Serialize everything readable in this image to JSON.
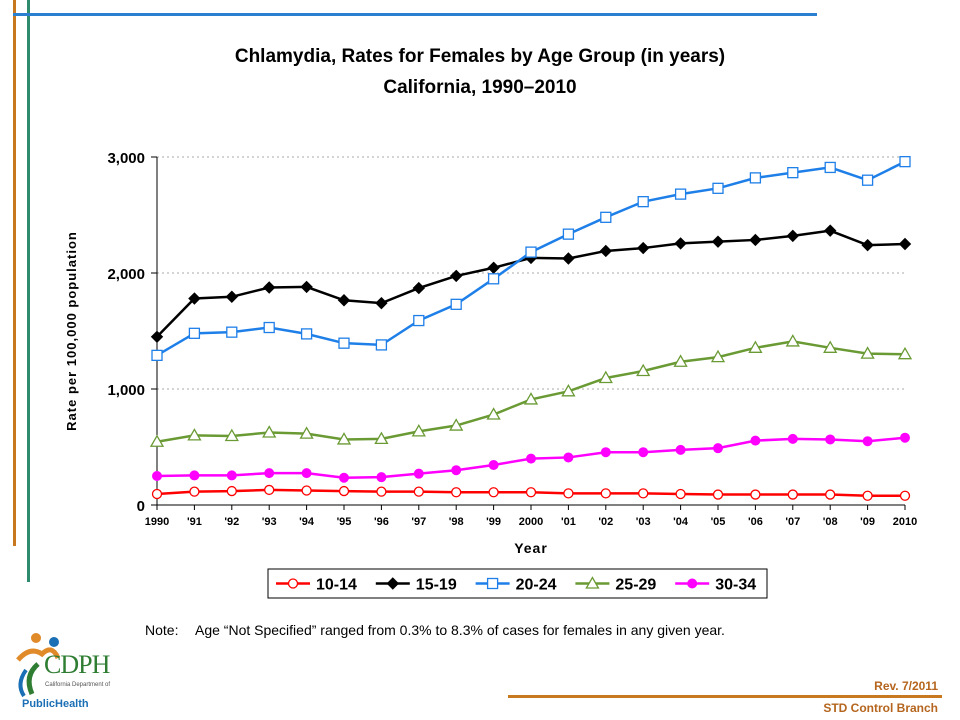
{
  "title_line1": "Chlamydia, Rates for Females by Age Group (in years)",
  "title_line2": "California, 1990–2010",
  "note_label": "Note:",
  "note_text": "Age “Not Specified” ranged from 0.3% to 8.3% of cases for females in any given year.",
  "revision": "Rev. 7/2011",
  "branch": "STD Control Branch",
  "logo": {
    "name": "CDPH",
    "subtitle_line1": "California Department of",
    "subtitle_line2": "PublicHealth"
  },
  "chart_data": {
    "type": "line",
    "title": "Chlamydia, Rates for Females by Age Group (in years)",
    "subtitle": "California, 1990–2010",
    "xlabel": "Year",
    "ylabel": "Rate per 100,000 population",
    "ylim": [
      0,
      3000
    ],
    "yticks": [
      0,
      1000,
      2000,
      3000
    ],
    "ytick_labels": [
      "0",
      "1,000",
      "2,000",
      "3,000"
    ],
    "grid": "horizontal dotted",
    "legend_position": "bottom",
    "categories": [
      "1990",
      "'91",
      "'92",
      "'93",
      "'94",
      "'95",
      "'96",
      "'97",
      "'98",
      "'99",
      "2000",
      "'01",
      "'02",
      "'03",
      "'04",
      "'05",
      "'06",
      "'07",
      "'08",
      "'09",
      "2010"
    ],
    "series": [
      {
        "name": "10-14",
        "color": "#ff0000",
        "marker": "circle-open",
        "values": [
          95,
          115,
          120,
          130,
          125,
          120,
          115,
          115,
          110,
          110,
          110,
          100,
          100,
          100,
          95,
          90,
          90,
          90,
          90,
          80,
          80
        ]
      },
      {
        "name": "15-19",
        "color": "#000000",
        "marker": "diamond-filled",
        "values": [
          1450,
          1780,
          1795,
          1875,
          1880,
          1765,
          1740,
          1870,
          1975,
          2045,
          2130,
          2125,
          2190,
          2215,
          2255,
          2270,
          2285,
          2320,
          2365,
          2240,
          2250
        ]
      },
      {
        "name": "20-24",
        "color": "#1e7fe8",
        "marker": "square-open",
        "values": [
          1290,
          1480,
          1490,
          1530,
          1475,
          1395,
          1380,
          1590,
          1730,
          1950,
          2180,
          2335,
          2480,
          2615,
          2680,
          2730,
          2820,
          2865,
          2910,
          2800,
          2960
        ]
      },
      {
        "name": "25-29",
        "color": "#6a9a34",
        "marker": "triangle-open",
        "values": [
          545,
          600,
          595,
          625,
          615,
          565,
          570,
          635,
          685,
          780,
          910,
          980,
          1095,
          1155,
          1235,
          1275,
          1355,
          1410,
          1355,
          1305,
          1300
        ]
      },
      {
        "name": "30-34",
        "color": "#ff00ff",
        "marker": "circle-filled",
        "values": [
          250,
          255,
          255,
          275,
          275,
          235,
          240,
          270,
          300,
          345,
          400,
          410,
          455,
          455,
          475,
          490,
          555,
          570,
          565,
          550,
          580
        ]
      }
    ]
  }
}
